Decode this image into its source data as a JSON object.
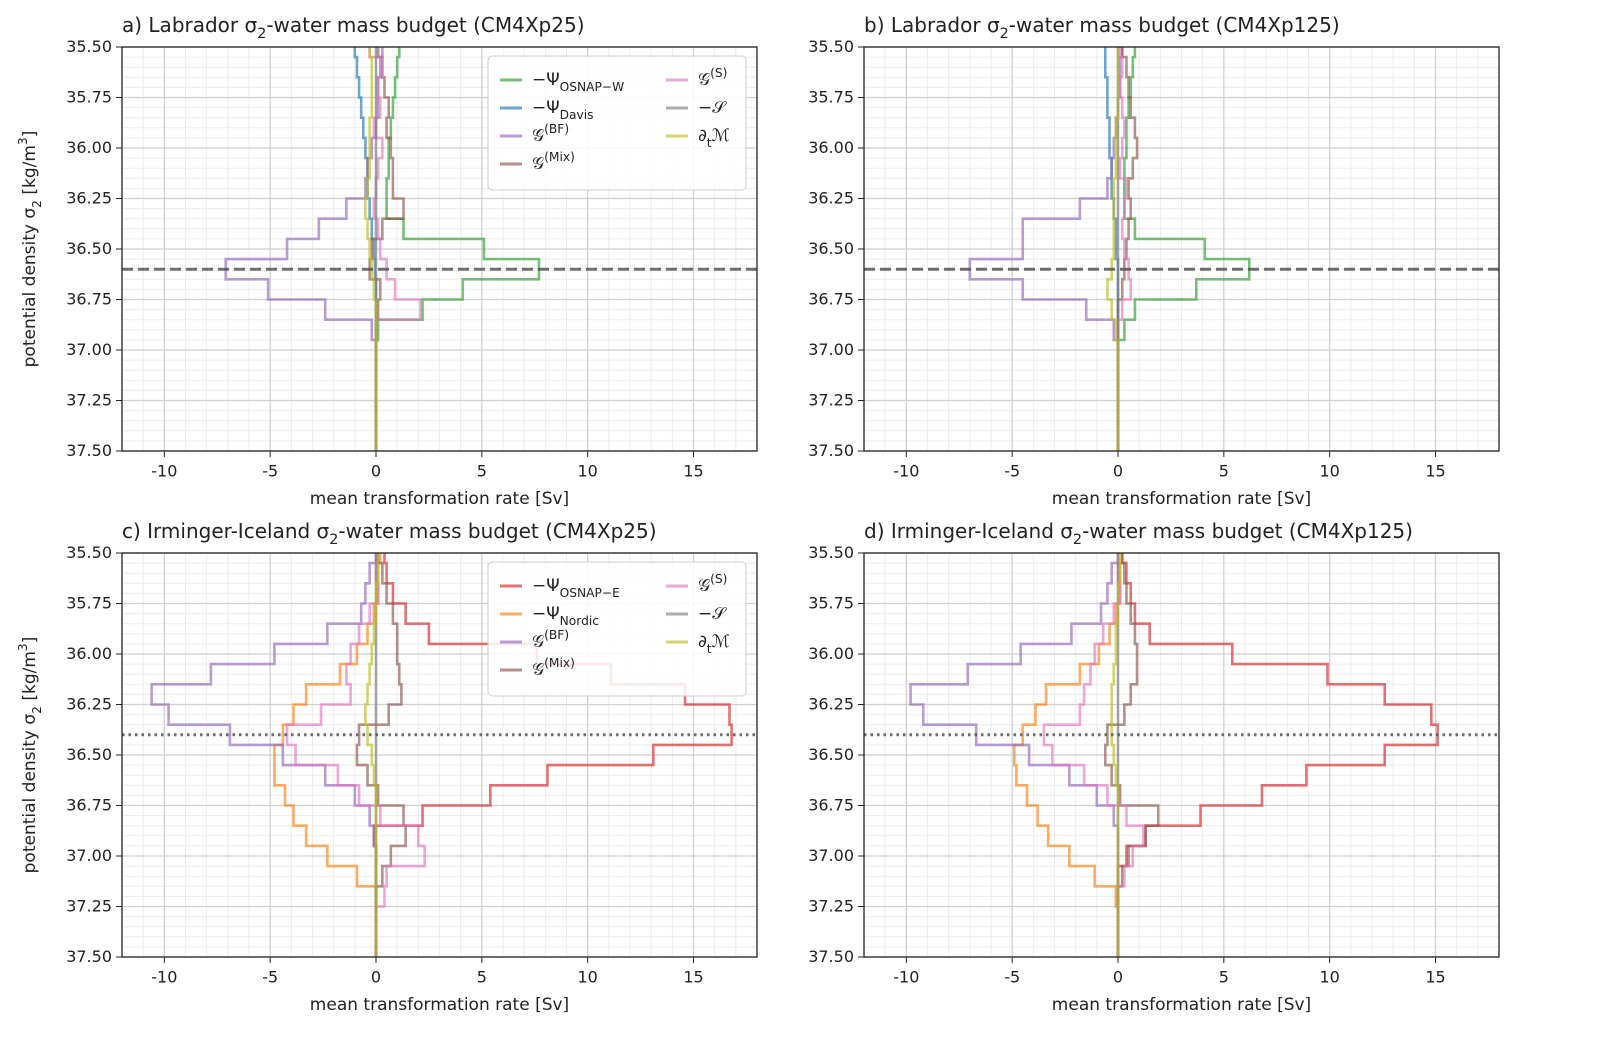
{
  "chart_data": [
    {
      "type": "step",
      "title": "a) Labrador σ_{2}-water mass budget (CM4Xp25)",
      "xlabel": "mean transformation rate [Sv]",
      "ylabel": "potential density σ_{2} [kg/m^{3}]",
      "xlim": [
        -12,
        18
      ],
      "ylim": [
        35.5,
        37.5
      ],
      "y_inverted": true,
      "grid": true,
      "xticks": [
        -10,
        -5,
        0,
        5,
        10,
        15
      ],
      "yticks": [
        {
          "value": 35.5,
          "label": "35.50"
        },
        {
          "value": 35.75,
          "label": "35.75"
        },
        {
          "value": 36,
          "label": "36.00"
        },
        {
          "value": 36.25,
          "label": "36.25"
        },
        {
          "value": 36.5,
          "label": "36.50"
        },
        {
          "value": 36.75,
          "label": "36.75"
        },
        {
          "value": 37,
          "label": "37.00"
        },
        {
          "value": 37.25,
          "label": "37.25"
        },
        {
          "value": 37.5,
          "label": "37.50"
        }
      ],
      "hline": {
        "value": 36.6,
        "style": "dashed"
      },
      "legend": "upper right",
      "y": [
        35.5,
        35.6,
        35.7,
        35.8,
        35.9,
        36.0,
        36.1,
        36.2,
        36.3,
        36.4,
        36.5,
        36.6,
        36.7,
        36.8,
        36.9,
        37.0,
        37.1,
        37.2,
        37.3,
        37.4,
        37.5
      ],
      "series": [
        {
          "name": "−Ψ_{OSNAP−W}",
          "color": "#2ca02c",
          "values": [
            1.1,
            1.0,
            0.9,
            0.8,
            0.7,
            0.6,
            0.6,
            0.5,
            0.5,
            1.3,
            5.1,
            7.7,
            4.1,
            2.2,
            0.1,
            0,
            0,
            0,
            0,
            0,
            0
          ]
        },
        {
          "name": "−Ψ_{Davis}",
          "color": "#1f77b4",
          "values": [
            -1.0,
            -0.9,
            -0.8,
            -0.7,
            -0.6,
            -0.5,
            -0.4,
            -0.4,
            -0.3,
            -0.2,
            -0.1,
            -0.05,
            0,
            0,
            0,
            0,
            0,
            0,
            0,
            0,
            0
          ]
        },
        {
          "name": "𝒢^{(BF)}",
          "color": "#9467bd",
          "values": [
            0.3,
            0.2,
            0.1,
            0.1,
            0.0,
            -0.2,
            -0.4,
            -0.5,
            -1.4,
            -2.7,
            -4.2,
            -7.1,
            -5.1,
            -2.4,
            -0.2,
            0,
            0,
            0,
            0,
            0,
            0
          ]
        },
        {
          "name": "𝒢^{(Mix)}",
          "color": "#8c564b",
          "values": [
            0.1,
            0.3,
            0.4,
            0.6,
            0.5,
            0.7,
            0.8,
            0.8,
            1.3,
            0.3,
            -0.2,
            -0.3,
            0.2,
            0.1,
            0,
            0,
            0,
            0,
            0,
            0,
            0
          ]
        },
        {
          "name": "𝒢^{(S)}",
          "color": "#e377c2",
          "values": [
            -0.3,
            0.3,
            0.1,
            0.2,
            -0.1,
            0.3,
            0.1,
            0.0,
            -0.1,
            0.1,
            0.2,
            0.5,
            0.9,
            2.1,
            0,
            0,
            0,
            0,
            0,
            0,
            0
          ]
        },
        {
          "name": "−𝒮",
          "color": "#7f7f7f",
          "values": [
            0,
            0,
            0,
            0,
            0,
            0,
            0,
            0,
            0,
            0,
            0,
            0,
            0,
            0,
            0,
            0,
            0,
            0,
            0,
            0,
            0
          ]
        },
        {
          "name": "∂_{t}ℳ",
          "color": "#bcbd22",
          "values": [
            -0.3,
            -0.2,
            -0.2,
            -0.2,
            -0.3,
            -0.3,
            -0.3,
            -0.4,
            -0.5,
            -0.4,
            -0.3,
            -0.2,
            -0.1,
            0,
            0,
            0,
            0,
            0,
            0,
            0,
            0
          ]
        }
      ]
    },
    {
      "type": "step",
      "title": "b) Labrador σ_{2}-water mass budget (CM4Xp125)",
      "xlabel": "mean transformation rate [Sv]",
      "xlim": [
        -12,
        18
      ],
      "ylim": [
        35.5,
        37.5
      ],
      "y_inverted": true,
      "grid": true,
      "xticks": [
        -10,
        -5,
        0,
        5,
        10,
        15
      ],
      "yticks": [
        {
          "value": 35.5,
          "label": "35.50"
        },
        {
          "value": 35.75,
          "label": "35.75"
        },
        {
          "value": 36,
          "label": "36.00"
        },
        {
          "value": 36.25,
          "label": "36.25"
        },
        {
          "value": 36.5,
          "label": "36.50"
        },
        {
          "value": 36.75,
          "label": "36.75"
        },
        {
          "value": 37,
          "label": "37.00"
        },
        {
          "value": 37.25,
          "label": "37.25"
        },
        {
          "value": 37.5,
          "label": "37.50"
        }
      ],
      "hline": {
        "value": 36.6,
        "style": "dashed"
      },
      "y": [
        35.5,
        35.6,
        35.7,
        35.8,
        35.9,
        36.0,
        36.1,
        36.2,
        36.3,
        36.4,
        36.5,
        36.6,
        36.7,
        36.8,
        36.9,
        37.0,
        37.1,
        37.2,
        37.3,
        37.4,
        37.5
      ],
      "series": [
        {
          "name": "−Ψ_{OSNAP−W}",
          "color": "#2ca02c",
          "values": [
            0.8,
            0.7,
            0.6,
            0.5,
            0.4,
            0.4,
            0.3,
            0.3,
            0.3,
            0.8,
            4.1,
            6.2,
            3.7,
            0.8,
            0.3,
            0,
            0,
            0,
            0,
            0,
            0
          ]
        },
        {
          "name": "−Ψ_{Davis}",
          "color": "#1f77b4",
          "values": [
            -0.6,
            -0.6,
            -0.5,
            -0.5,
            -0.4,
            -0.4,
            -0.3,
            -0.3,
            -0.2,
            -0.1,
            -0.1,
            0,
            0,
            0,
            0,
            0,
            0,
            0,
            0,
            0,
            0
          ]
        },
        {
          "name": "𝒢^{(BF)}",
          "color": "#9467bd",
          "values": [
            0.2,
            0.1,
            0.1,
            0.0,
            -0.1,
            -0.2,
            -0.3,
            -0.5,
            -1.8,
            -4.5,
            -4.5,
            -7.0,
            -4.5,
            -1.5,
            -0.2,
            0,
            0,
            0,
            0,
            0,
            0
          ]
        },
        {
          "name": "𝒢^{(Mix)}",
          "color": "#8c564b",
          "values": [
            0.2,
            0.4,
            0.5,
            0.6,
            0.8,
            0.9,
            0.7,
            0.5,
            0.6,
            0.5,
            0.4,
            0.3,
            0.2,
            0,
            0,
            0,
            0,
            0,
            0,
            0,
            0
          ]
        },
        {
          "name": "𝒢^{(S)}",
          "color": "#e377c2",
          "values": [
            0.1,
            0.2,
            0.1,
            0.2,
            0.3,
            0.2,
            0.1,
            0.4,
            0.3,
            0.2,
            0.3,
            0.5,
            0.6,
            0.2,
            0,
            0,
            0,
            0,
            0,
            0,
            0
          ]
        },
        {
          "name": "−𝒮",
          "color": "#7f7f7f",
          "values": [
            0,
            0,
            0,
            0,
            0,
            0,
            0,
            0,
            0,
            0,
            0,
            0,
            0,
            0,
            0,
            0,
            0,
            0,
            0,
            0,
            0
          ]
        },
        {
          "name": "∂_{t}ℳ",
          "color": "#bcbd22",
          "values": [
            0,
            0,
            0,
            0,
            -0.1,
            -0.1,
            -0.1,
            -0.2,
            -0.2,
            -0.2,
            -0.2,
            -0.3,
            -0.5,
            -0.3,
            -0.1,
            0,
            0,
            0,
            0,
            0,
            0
          ]
        }
      ]
    },
    {
      "type": "step",
      "title": "c) Irminger-Iceland σ_{2}-water mass budget (CM4Xp25)",
      "xlabel": "mean transformation rate [Sv]",
      "ylabel": "potential density σ_{2} [kg/m^{3}]",
      "xlim": [
        -12,
        18
      ],
      "ylim": [
        35.5,
        37.5
      ],
      "y_inverted": true,
      "grid": true,
      "xticks": [
        -10,
        -5,
        0,
        5,
        10,
        15
      ],
      "yticks": [
        {
          "value": 35.5,
          "label": "35.50"
        },
        {
          "value": 35.75,
          "label": "35.75"
        },
        {
          "value": 36,
          "label": "36.00"
        },
        {
          "value": 36.25,
          "label": "36.25"
        },
        {
          "value": 36.5,
          "label": "36.50"
        },
        {
          "value": 36.75,
          "label": "36.75"
        },
        {
          "value": 37,
          "label": "37.00"
        },
        {
          "value": 37.25,
          "label": "37.25"
        },
        {
          "value": 37.5,
          "label": "37.50"
        }
      ],
      "hline": {
        "value": 36.4,
        "style": "dotted"
      },
      "legend": "upper right",
      "y": [
        35.5,
        35.6,
        35.7,
        35.8,
        35.9,
        36.0,
        36.1,
        36.2,
        36.3,
        36.4,
        36.5,
        36.6,
        36.7,
        36.8,
        36.9,
        37.0,
        37.1,
        37.2,
        37.3,
        37.4,
        37.5
      ],
      "series": [
        {
          "name": "−Ψ_{OSNAP−E}",
          "color": "#d62728",
          "values": [
            0.4,
            0.5,
            0.8,
            1.4,
            2.5,
            7.6,
            11.1,
            14.6,
            16.7,
            16.8,
            13.1,
            8.1,
            5.4,
            2.2,
            -0.1,
            0,
            0,
            0,
            0,
            0,
            0
          ]
        },
        {
          "name": "−Ψ_{Nordic}",
          "color": "#ff7f0e",
          "values": [
            0.2,
            0.1,
            0.1,
            -0.1,
            -0.4,
            -0.9,
            -1.7,
            -3.3,
            -3.9,
            -4.4,
            -4.8,
            -4.8,
            -4.3,
            -3.9,
            -3.3,
            -2.3,
            -0.9,
            0,
            0,
            0,
            0
          ]
        },
        {
          "name": "𝒢^{(BF)}",
          "color": "#9467bd",
          "values": [
            0,
            -0.3,
            -0.5,
            -0.7,
            -2.3,
            -4.8,
            -7.8,
            -10.6,
            -9.8,
            -6.9,
            -4.4,
            -2.4,
            -1.0,
            -0.3,
            -0.1,
            0,
            0,
            0,
            0,
            0,
            0
          ]
        },
        {
          "name": "𝒢^{(Mix)}",
          "color": "#8c564b",
          "values": [
            0.1,
            0.3,
            0.5,
            0.8,
            1.0,
            1.0,
            1.1,
            1.2,
            0.6,
            -0.8,
            -0.9,
            -0.4,
            0.1,
            1.3,
            1.4,
            0.7,
            0.3,
            0,
            0,
            0,
            0
          ]
        },
        {
          "name": "𝒢^{(S)}",
          "color": "#e377c2",
          "values": [
            0,
            0,
            0.1,
            -0.3,
            -0.8,
            -1.2,
            -1.4,
            -1.2,
            -2.6,
            -4.2,
            -3.8,
            -1.8,
            -0.8,
            0.2,
            2.0,
            2.3,
            0.5,
            0.4,
            0,
            0,
            0
          ]
        },
        {
          "name": "−𝒮",
          "color": "#7f7f7f",
          "values": [
            0,
            0,
            0,
            0,
            0,
            0,
            0,
            0,
            0,
            0,
            0,
            0,
            0,
            0,
            0,
            0,
            0,
            0,
            0,
            0,
            0
          ]
        },
        {
          "name": "∂_{t}ℳ",
          "color": "#bcbd22",
          "values": [
            0.1,
            0.1,
            0,
            0,
            -0.1,
            -0.2,
            -0.3,
            -0.4,
            -0.5,
            -0.4,
            -0.2,
            -0.1,
            0,
            0,
            0,
            0,
            0,
            0,
            0,
            0,
            0
          ]
        }
      ]
    },
    {
      "type": "step",
      "title": "d) Irminger-Iceland σ_{2}-water mass budget (CM4Xp125)",
      "xlabel": "mean transformation rate [Sv]",
      "xlim": [
        -12,
        18
      ],
      "ylim": [
        35.5,
        37.5
      ],
      "y_inverted": true,
      "grid": true,
      "xticks": [
        -10,
        -5,
        0,
        5,
        10,
        15
      ],
      "yticks": [
        {
          "value": 35.5,
          "label": "35.50"
        },
        {
          "value": 35.75,
          "label": "35.75"
        },
        {
          "value": 36,
          "label": "36.00"
        },
        {
          "value": 36.25,
          "label": "36.25"
        },
        {
          "value": 36.5,
          "label": "36.50"
        },
        {
          "value": 36.75,
          "label": "36.75"
        },
        {
          "value": 37,
          "label": "37.00"
        },
        {
          "value": 37.25,
          "label": "37.25"
        },
        {
          "value": 37.5,
          "label": "37.50"
        }
      ],
      "hline": {
        "value": 36.4,
        "style": "dotted"
      },
      "y": [
        35.5,
        35.6,
        35.7,
        35.8,
        35.9,
        36.0,
        36.1,
        36.2,
        36.3,
        36.4,
        36.5,
        36.6,
        36.7,
        36.8,
        36.9,
        37.0,
        37.1,
        37.2,
        37.3,
        37.4,
        37.5
      ],
      "series": [
        {
          "name": "−Ψ_{OSNAP−E}",
          "color": "#d62728",
          "values": [
            0.2,
            0.4,
            0.6,
            0.8,
            1.5,
            5.4,
            9.9,
            12.6,
            14.8,
            15.1,
            12.6,
            8.9,
            6.8,
            3.9,
            1.3,
            0.4,
            0,
            0,
            0,
            0,
            0
          ]
        },
        {
          "name": "−Ψ_{Nordic}",
          "color": "#ff7f0e",
          "values": [
            0.2,
            0.1,
            0.1,
            -0.1,
            -0.4,
            -0.9,
            -1.8,
            -3.4,
            -3.9,
            -4.5,
            -4.9,
            -4.8,
            -4.3,
            -3.8,
            -3.3,
            -2.3,
            -1.1,
            -0.1,
            0,
            0,
            0
          ]
        },
        {
          "name": "𝒢^{(BF)}",
          "color": "#9467bd",
          "values": [
            0,
            -0.3,
            -0.5,
            -0.8,
            -2.2,
            -4.6,
            -7.1,
            -9.8,
            -9.2,
            -6.7,
            -4.2,
            -2.3,
            -1.0,
            -0.2,
            0,
            0,
            0,
            0,
            0,
            0,
            0
          ]
        },
        {
          "name": "𝒢^{(Mix)}",
          "color": "#8c564b",
          "values": [
            0.2,
            0.3,
            0.4,
            0.6,
            0.8,
            0.9,
            0.9,
            0.6,
            0.3,
            -0.5,
            -0.6,
            -0.3,
            0.1,
            1.9,
            1.3,
            0.5,
            0.2,
            0,
            0,
            0,
            0
          ]
        },
        {
          "name": "𝒢^{(S)}",
          "color": "#e377c2",
          "values": [
            0,
            0,
            0.1,
            -0.2,
            -0.7,
            -1.1,
            -1.3,
            -1.6,
            -1.8,
            -3.5,
            -3.1,
            -1.6,
            -0.5,
            0.4,
            1.2,
            0.7,
            0.3,
            0,
            0,
            0,
            0
          ]
        },
        {
          "name": "−𝒮",
          "color": "#7f7f7f",
          "values": [
            0,
            0,
            0,
            0,
            0,
            0,
            0,
            0,
            0,
            0,
            0,
            0,
            0,
            0,
            0,
            0,
            0,
            0,
            0,
            0,
            0
          ]
        },
        {
          "name": "∂_{t}ℳ",
          "color": "#bcbd22",
          "values": [
            0.1,
            0.1,
            0,
            0,
            -0.1,
            -0.1,
            -0.2,
            -0.3,
            -0.3,
            -0.3,
            -0.2,
            -0.1,
            0,
            0,
            0,
            0,
            0,
            0,
            0,
            0,
            0
          ]
        }
      ]
    }
  ]
}
